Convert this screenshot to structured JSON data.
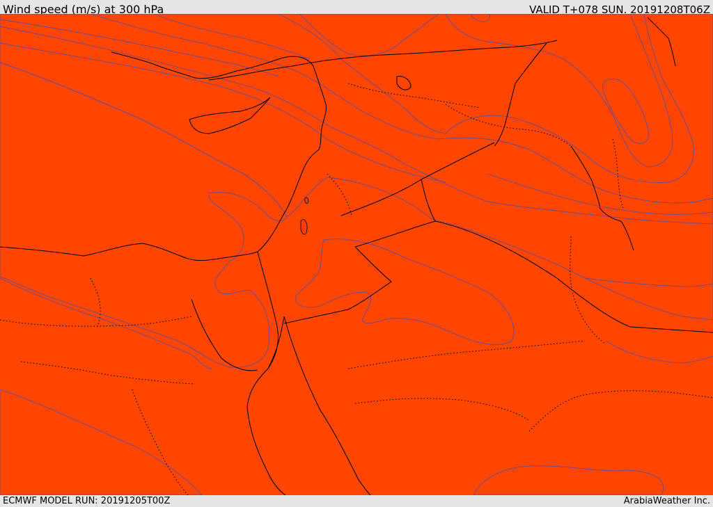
{
  "header": {
    "title": "Wind speed (m/s) at 300 hPa",
    "valid": "VALID T+078 SUN. 20191208T06Z"
  },
  "footer": {
    "model_run": "ECMWF MODEL RUN: 20191205T00Z",
    "credit": "ArabiaWeather Inc."
  },
  "colors": {
    "band_1": "#ffd9a8",
    "band_2": "#ffff00",
    "band_3": "#ffe000",
    "band_4": "#ffbf00",
    "band_5": "#ff9f00",
    "band_6": "#ff7400",
    "band_7": "#ff4500",
    "band_8": "#ff2200",
    "isoline": "#6a4b8c",
    "coastline": "#000000"
  }
}
